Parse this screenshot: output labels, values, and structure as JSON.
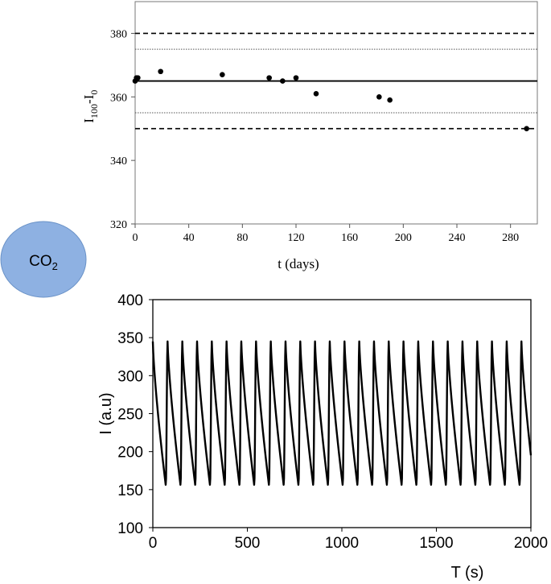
{
  "badge": {
    "label_main": "CO",
    "label_sub": "2",
    "fill": "#8eb1e2",
    "stroke": "#6a92c7"
  },
  "chart_data": [
    {
      "type": "scatter",
      "xlabel": "t (days)",
      "ylabel_main": "I",
      "ylabel_sub1": "100",
      "ylabel_mid": "-I",
      "ylabel_sub2": "0",
      "xlim": [
        0,
        300
      ],
      "ylim": [
        320,
        390
      ],
      "xticks": [
        0,
        40,
        80,
        120,
        160,
        200,
        240,
        280
      ],
      "yticks": [
        320,
        340,
        360,
        380
      ],
      "series": [
        {
          "x": [
            0,
            1,
            2,
            19,
            65,
            100,
            110,
            120,
            135,
            182,
            190,
            292
          ],
          "y": [
            365,
            366,
            366,
            368,
            367,
            366,
            365,
            366,
            361,
            360,
            359,
            350
          ]
        }
      ],
      "reference_lines": [
        {
          "y": 365,
          "style": "solid"
        },
        {
          "y": 380,
          "style": "dashed"
        },
        {
          "y": 350,
          "style": "dashed"
        },
        {
          "y": 375,
          "style": "dotted"
        },
        {
          "y": 355,
          "style": "dotted"
        }
      ],
      "grid": false
    },
    {
      "type": "line",
      "xlabel": "T (s)",
      "ylabel": "I (a.u)",
      "xlim": [
        0,
        2000
      ],
      "ylim": [
        100,
        400
      ],
      "xticks": [
        0,
        500,
        1000,
        1500,
        2000
      ],
      "yticks": [
        100,
        150,
        200,
        250,
        300,
        350,
        400
      ],
      "series": [
        {
          "period": 78,
          "min": 155,
          "max": 345,
          "t_start": 0,
          "t_end": 2000,
          "value_at_start": 345
        }
      ],
      "grid": false
    }
  ]
}
